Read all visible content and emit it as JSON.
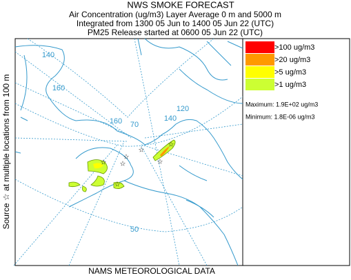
{
  "header": {
    "title": "NWS SMOKE FORECAST",
    "lines": [
      "Air Concentration (ug/m3) Layer Average    0 m and  5000 m",
      "Integrated from 1300 05 Jun to 1400 05 Jun 22 (UTC)",
      "PM25 Release started at 0600 05 Jun 22 (UTC)"
    ]
  },
  "legend": {
    "items": [
      {
        "label": ">100 ug/m3",
        "color": "#ff0000"
      },
      {
        "label": ">20 ug/m3",
        "color": "#ff9900"
      },
      {
        "label": ">5 ug/m3",
        "color": "#ffff00"
      },
      {
        "label": ">1 ug/m3",
        "color": "#ccff33"
      }
    ],
    "maximum": "Maximum: 1.9E+02 ug/m3",
    "minimum": "Minimum: 1.8E-06 ug/m3"
  },
  "source_label": "Source ☆    at multiple locations    from  100 m",
  "footer": "NAMS METEOROLOGICAL DATA",
  "map_labels": [
    "140",
    "160",
    "160",
    "70",
    "140",
    "120",
    "50"
  ]
}
